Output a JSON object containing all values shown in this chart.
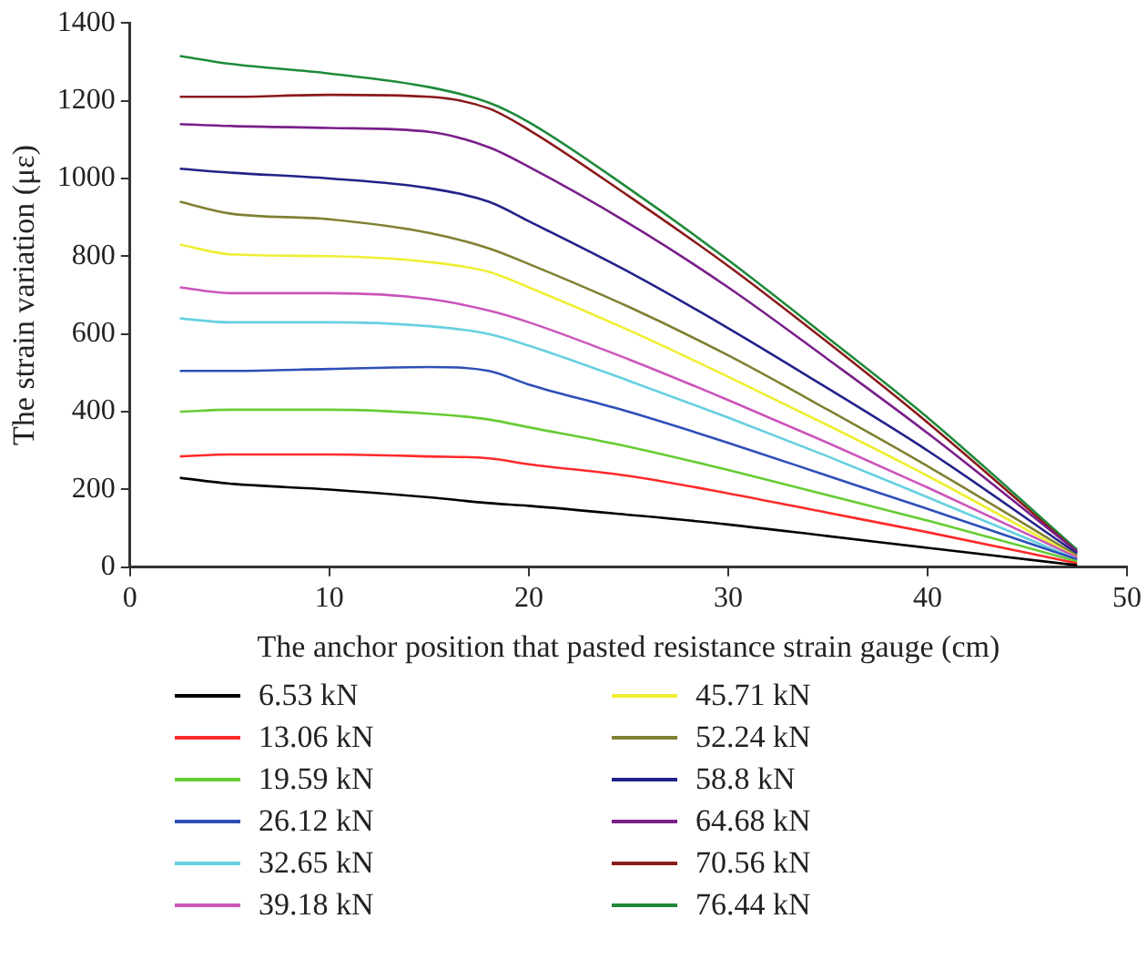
{
  "chart_data": {
    "type": "line",
    "xlabel": "The anchor position that pasted resistance strain gauge (cm)",
    "ylabel": "The strain variation (με)",
    "x": [
      2.5,
      5,
      10,
      15,
      18,
      20,
      25,
      30,
      35,
      40,
      47.5
    ],
    "xlim": [
      0,
      50
    ],
    "xticks": [
      0,
      10,
      20,
      30,
      40,
      50
    ],
    "ylim": [
      0,
      1400
    ],
    "yticks": [
      0,
      200,
      400,
      600,
      800,
      1000,
      1200,
      1400
    ],
    "grid": false,
    "legend": "bottom",
    "marker": "none",
    "line_style": "solid",
    "series": [
      {
        "name": "6.53 kN",
        "color": "#000000",
        "values": [
          230,
          215,
          200,
          180,
          165,
          158,
          135,
          110,
          80,
          50,
          5
        ]
      },
      {
        "name": "13.06 kN",
        "color": "#ff2a2a",
        "values": [
          285,
          290,
          290,
          285,
          280,
          265,
          235,
          190,
          140,
          90,
          10
        ]
      },
      {
        "name": "19.59 kN",
        "color": "#66cc33",
        "values": [
          400,
          405,
          405,
          395,
          380,
          360,
          310,
          250,
          185,
          120,
          15
        ]
      },
      {
        "name": "26.12 kN",
        "color": "#2e4fb8",
        "values": [
          505,
          505,
          510,
          515,
          505,
          470,
          400,
          320,
          235,
          150,
          20
        ]
      },
      {
        "name": "32.65 kN",
        "color": "#66d0e0",
        "values": [
          640,
          630,
          630,
          620,
          600,
          570,
          480,
          385,
          285,
          180,
          20
        ]
      },
      {
        "name": "39.18 kN",
        "color": "#cc55bb",
        "values": [
          720,
          705,
          705,
          690,
          660,
          630,
          535,
          430,
          320,
          205,
          25
        ]
      },
      {
        "name": "45.71 kN",
        "color": "#eeee33",
        "values": [
          830,
          805,
          800,
          785,
          760,
          720,
          610,
          490,
          365,
          235,
          25
        ]
      },
      {
        "name": "52.24 kN",
        "color": "#808033",
        "values": [
          940,
          910,
          895,
          860,
          820,
          780,
          670,
          545,
          405,
          260,
          30
        ]
      },
      {
        "name": "58.8 kN",
        "color": "#22228a",
        "values": [
          1025,
          1015,
          1000,
          975,
          940,
          890,
          760,
          615,
          460,
          300,
          35
        ]
      },
      {
        "name": "64.68 kN",
        "color": "#7a1f8a",
        "values": [
          1140,
          1135,
          1130,
          1120,
          1080,
          1030,
          885,
          720,
          535,
          345,
          40
        ]
      },
      {
        "name": "70.56 kN",
        "color": "#8b1a1a",
        "values": [
          1210,
          1210,
          1215,
          1210,
          1180,
          1125,
          955,
          775,
          578,
          372,
          40
        ]
      },
      {
        "name": "76.44 kN",
        "color": "#1f8a3a",
        "values": [
          1315,
          1295,
          1270,
          1235,
          1195,
          1145,
          975,
          790,
          590,
          385,
          45
        ]
      }
    ]
  }
}
